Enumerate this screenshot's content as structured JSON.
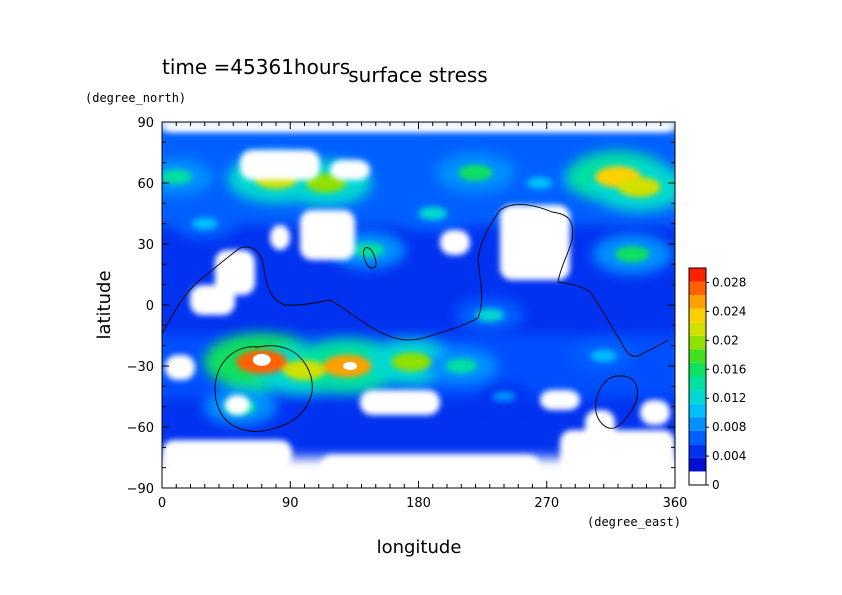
{
  "chart_data": {
    "type": "heatmap",
    "title": "surface stress",
    "subtitle": "time =45361hours",
    "xlabel": "longitude",
    "ylabel": "latitude",
    "x_unit": "(degree_east)",
    "y_unit": "(degree_north)",
    "xlim": [
      0,
      360
    ],
    "ylim": [
      -90,
      90
    ],
    "x_ticks": [
      0,
      90,
      180,
      270,
      360
    ],
    "y_ticks": [
      -90,
      -60,
      -30,
      0,
      30,
      60,
      90
    ],
    "x_tick_labels": [
      "0",
      "90",
      "180",
      "270",
      "360"
    ],
    "y_tick_labels": [
      "−90",
      "−60",
      "−30",
      "0",
      "30",
      "60",
      "90"
    ],
    "colorbar": {
      "min": 0,
      "max": 0.03,
      "labels": [
        "0",
        "0.004",
        "0.008",
        "0.012",
        "0.016",
        "0.02",
        "0.024",
        "0.028"
      ],
      "label_values": [
        0,
        0.004,
        0.008,
        0.012,
        0.016,
        0.02,
        0.024,
        0.028
      ],
      "colors": [
        "#ffffff",
        "#0010d0",
        "#0030f0",
        "#0060ff",
        "#0090ff",
        "#00c0ff",
        "#00d8d0",
        "#00e0a0",
        "#10e060",
        "#40e020",
        "#90e000",
        "#d0e000",
        "#ffd000",
        "#ffa000",
        "#ff6000",
        "#ff2000"
      ]
    },
    "grid": false,
    "field_hotspots": [
      {
        "lon": 80,
        "lat": 62,
        "value": 0.022
      },
      {
        "lon": 115,
        "lat": 60,
        "value": 0.02
      },
      {
        "lon": 10,
        "lat": 63,
        "value": 0.014
      },
      {
        "lon": 220,
        "lat": 65,
        "value": 0.016
      },
      {
        "lon": 265,
        "lat": 60,
        "value": 0.01
      },
      {
        "lon": 320,
        "lat": 63,
        "value": 0.024
      },
      {
        "lon": 335,
        "lat": 58,
        "value": 0.022
      },
      {
        "lon": 190,
        "lat": 45,
        "value": 0.012
      },
      {
        "lon": 145,
        "lat": 27,
        "value": 0.014
      },
      {
        "lon": 330,
        "lat": 25,
        "value": 0.016
      },
      {
        "lon": 70,
        "lat": -28,
        "value": 0.028
      },
      {
        "lon": 100,
        "lat": -32,
        "value": 0.022
      },
      {
        "lon": 130,
        "lat": -30,
        "value": 0.026
      },
      {
        "lon": 175,
        "lat": -28,
        "value": 0.02
      },
      {
        "lon": 210,
        "lat": -30,
        "value": 0.014
      },
      {
        "lon": 230,
        "lat": -5,
        "value": 0.012
      },
      {
        "lon": 55,
        "lat": -50,
        "value": 0.014
      },
      {
        "lon": 310,
        "lat": -25,
        "value": 0.01
      },
      {
        "lon": 30,
        "lat": 40,
        "value": 0.01
      },
      {
        "lon": 240,
        "lat": -45,
        "value": 0.008
      }
    ]
  }
}
